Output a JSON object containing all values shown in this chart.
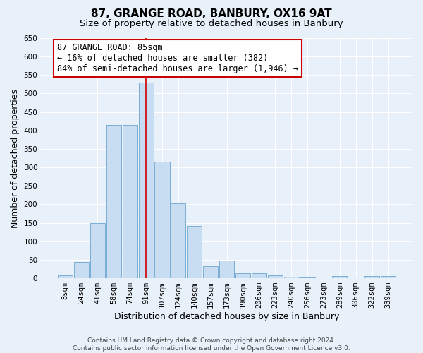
{
  "title": "87, GRANGE ROAD, BANBURY, OX16 9AT",
  "subtitle": "Size of property relative to detached houses in Banbury",
  "xlabel": "Distribution of detached houses by size in Banbury",
  "ylabel": "Number of detached properties",
  "categories": [
    "8sqm",
    "24sqm",
    "41sqm",
    "58sqm",
    "74sqm",
    "91sqm",
    "107sqm",
    "124sqm",
    "140sqm",
    "157sqm",
    "173sqm",
    "190sqm",
    "206sqm",
    "223sqm",
    "240sqm",
    "256sqm",
    "273sqm",
    "289sqm",
    "306sqm",
    "322sqm",
    "339sqm"
  ],
  "values": [
    7,
    45,
    150,
    415,
    415,
    530,
    315,
    202,
    141,
    33,
    48,
    14,
    13,
    8,
    4,
    2,
    0,
    5,
    0,
    6,
    6
  ],
  "bar_color": "#c9ddf2",
  "bar_edge_color": "#7aaed6",
  "red_line_color": "#cc0000",
  "red_line_x": 5.0,
  "annotation_box_text": "87 GRANGE ROAD: 85sqm\n← 16% of detached houses are smaller (382)\n84% of semi-detached houses are larger (1,946) →",
  "footer_line1": "Contains HM Land Registry data © Crown copyright and database right 2024.",
  "footer_line2": "Contains public sector information licensed under the Open Government Licence v3.0.",
  "ylim": [
    0,
    650
  ],
  "yticks": [
    0,
    50,
    100,
    150,
    200,
    250,
    300,
    350,
    400,
    450,
    500,
    550,
    600,
    650
  ],
  "background_color": "#e8f0fa",
  "grid_color": "#ffffff",
  "title_fontsize": 11,
  "subtitle_fontsize": 9.5,
  "axis_label_fontsize": 9,
  "tick_fontsize": 7.5,
  "footer_fontsize": 6.5,
  "annotation_fontsize": 8.5
}
